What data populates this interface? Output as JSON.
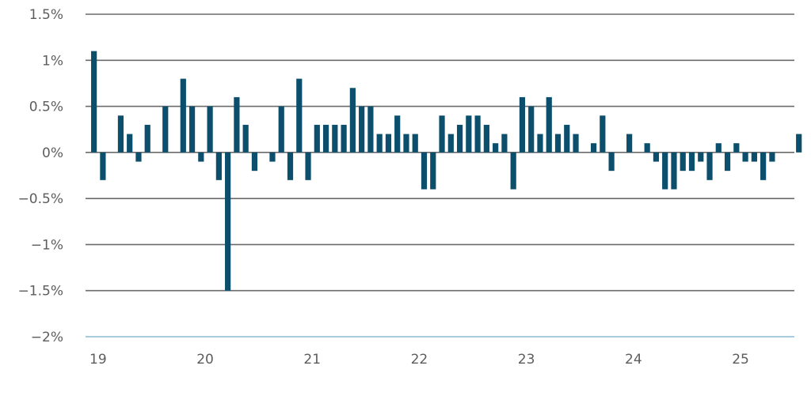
{
  "chart_data": {
    "type": "bar",
    "title": "",
    "xlabel": "",
    "ylabel": "",
    "ylim": [
      -2,
      1.5
    ],
    "y_ticks": [
      {
        "value": 1.5,
        "label": "1.5%"
      },
      {
        "value": 1,
        "label": "1%"
      },
      {
        "value": 0.5,
        "label": "0.5%"
      },
      {
        "value": 0,
        "label": "0%"
      },
      {
        "value": -0.5,
        "label": "−0.5%"
      },
      {
        "value": -1,
        "label": "−1%"
      },
      {
        "value": -1.5,
        "label": "−1.5%"
      },
      {
        "value": -2,
        "label": "−2%"
      }
    ],
    "x_ticks": [
      {
        "value": 2019,
        "label": "19"
      },
      {
        "value": 2020,
        "label": "20"
      },
      {
        "value": 2021,
        "label": "21"
      },
      {
        "value": 2022,
        "label": "22"
      },
      {
        "value": 2023,
        "label": "23"
      },
      {
        "value": 2024,
        "label": "24"
      },
      {
        "value": 2025,
        "label": "25"
      }
    ],
    "grid": true,
    "colors": {
      "bar": "#0b4f6c",
      "grid": "#6b6b6b",
      "bottom_axis": "#a9cbe0",
      "text": "#5d5d5d"
    },
    "series": [
      {
        "start": "2019-01",
        "frequency": "monthly",
        "values": [
          1.1,
          -0.3,
          0.0,
          0.4,
          0.2,
          -0.1,
          0.3,
          0.0,
          0.5,
          0.0,
          0.8,
          0.5,
          -0.1,
          0.5,
          -0.3,
          -1.5,
          0.6,
          0.3,
          -0.2,
          0.0,
          -0.1,
          0.5,
          -0.3,
          0.8,
          -0.3,
          0.3,
          0.3,
          0.3,
          0.3,
          0.7,
          0.5,
          0.5,
          0.2,
          0.2,
          0.4,
          0.2,
          0.2,
          -0.4,
          -0.4,
          0.4,
          0.2,
          0.3,
          0.4,
          0.4,
          0.3,
          0.1,
          0.2,
          -0.4,
          0.6,
          0.5,
          0.2,
          0.6,
          0.2,
          0.3,
          0.2,
          0.0,
          0.1,
          0.4,
          -0.2,
          0.0,
          0.2,
          0.0,
          0.1,
          -0.1,
          -0.4,
          -0.4,
          -0.2,
          -0.2,
          -0.1,
          -0.3,
          0.1,
          -0.2,
          0.1,
          -0.1,
          -0.1,
          -0.3,
          -0.1,
          0.0,
          0.0,
          0.2
        ]
      }
    ]
  }
}
